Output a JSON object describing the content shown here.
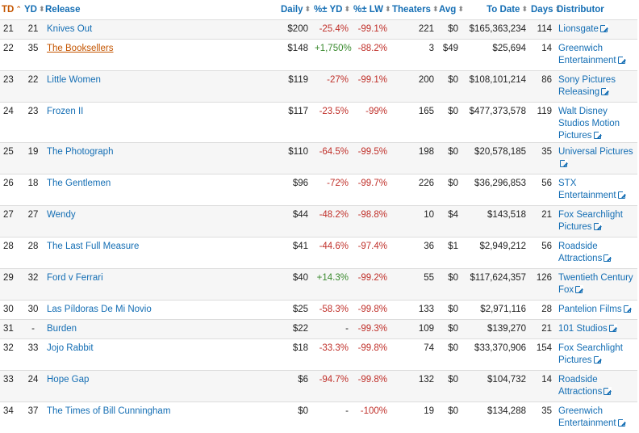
{
  "headers": {
    "td": "TD",
    "yd": "YD",
    "release": "Release",
    "daily": "Daily",
    "pct_yd": "%± YD",
    "pct_lw": "%± LW",
    "theaters": "Theaters",
    "avg": "Avg",
    "to_date": "To Date",
    "days": "Days",
    "distributor": "Distributor"
  },
  "rows": [
    {
      "td": "21",
      "yd": "21",
      "release": "Knives Out",
      "daily": "$200",
      "pct_yd": "-25.4%",
      "pct_lw": "-99.1%",
      "theaters": "221",
      "avg": "$0",
      "to_date": "$165,363,234",
      "days": "114",
      "distributor": "Lionsgate"
    },
    {
      "td": "22",
      "yd": "35",
      "release": "The Booksellers",
      "daily": "$148",
      "pct_yd": "+1,750%",
      "pct_lw": "-88.2%",
      "theaters": "3",
      "avg": "$49",
      "to_date": "$25,694",
      "days": "14",
      "distributor": "Greenwich Entertainment"
    },
    {
      "td": "23",
      "yd": "22",
      "release": "Little Women",
      "daily": "$119",
      "pct_yd": "-27%",
      "pct_lw": "-99.1%",
      "theaters": "200",
      "avg": "$0",
      "to_date": "$108,101,214",
      "days": "86",
      "distributor": "Sony Pictures Releasing"
    },
    {
      "td": "24",
      "yd": "23",
      "release": "Frozen II",
      "daily": "$117",
      "pct_yd": "-23.5%",
      "pct_lw": "-99%",
      "theaters": "165",
      "avg": "$0",
      "to_date": "$477,373,578",
      "days": "119",
      "distributor": "Walt Disney Studios Motion Pictures"
    },
    {
      "td": "25",
      "yd": "19",
      "release": "The Photograph",
      "daily": "$110",
      "pct_yd": "-64.5%",
      "pct_lw": "-99.5%",
      "theaters": "198",
      "avg": "$0",
      "to_date": "$20,578,185",
      "days": "35",
      "distributor": "Universal Pictures"
    },
    {
      "td": "26",
      "yd": "18",
      "release": "The Gentlemen",
      "daily": "$96",
      "pct_yd": "-72%",
      "pct_lw": "-99.7%",
      "theaters": "226",
      "avg": "$0",
      "to_date": "$36,296,853",
      "days": "56",
      "distributor": "STX Entertainment"
    },
    {
      "td": "27",
      "yd": "27",
      "release": "Wendy",
      "daily": "$44",
      "pct_yd": "-48.2%",
      "pct_lw": "-98.8%",
      "theaters": "10",
      "avg": "$4",
      "to_date": "$143,518",
      "days": "21",
      "distributor": "Fox Searchlight Pictures"
    },
    {
      "td": "28",
      "yd": "28",
      "release": "The Last Full Measure",
      "daily": "$41",
      "pct_yd": "-44.6%",
      "pct_lw": "-97.4%",
      "theaters": "36",
      "avg": "$1",
      "to_date": "$2,949,212",
      "days": "56",
      "distributor": "Roadside Attractions"
    },
    {
      "td": "29",
      "yd": "32",
      "release": "Ford v Ferrari",
      "daily": "$40",
      "pct_yd": "+14.3%",
      "pct_lw": "-99.2%",
      "theaters": "55",
      "avg": "$0",
      "to_date": "$117,624,357",
      "days": "126",
      "distributor": "Twentieth Century Fox"
    },
    {
      "td": "30",
      "yd": "30",
      "release": "Las Píldoras De Mi Novio",
      "daily": "$25",
      "pct_yd": "-58.3%",
      "pct_lw": "-99.8%",
      "theaters": "133",
      "avg": "$0",
      "to_date": "$2,971,116",
      "days": "28",
      "distributor": "Pantelion Films"
    },
    {
      "td": "31",
      "yd": "-",
      "release": "Burden",
      "daily": "$22",
      "pct_yd": "-",
      "pct_lw": "-99.3%",
      "theaters": "109",
      "avg": "$0",
      "to_date": "$139,270",
      "days": "21",
      "distributor": "101 Studios"
    },
    {
      "td": "32",
      "yd": "33",
      "release": "Jojo Rabbit",
      "daily": "$18",
      "pct_yd": "-33.3%",
      "pct_lw": "-99.8%",
      "theaters": "74",
      "avg": "$0",
      "to_date": "$33,370,906",
      "days": "154",
      "distributor": "Fox Searchlight Pictures"
    },
    {
      "td": "33",
      "yd": "24",
      "release": "Hope Gap",
      "daily": "$6",
      "pct_yd": "-94.7%",
      "pct_lw": "-99.8%",
      "theaters": "132",
      "avg": "$0",
      "to_date": "$104,732",
      "days": "14",
      "distributor": "Roadside Attractions"
    },
    {
      "td": "34",
      "yd": "37",
      "release": "The Times of Bill Cunningham",
      "daily": "$0",
      "pct_yd": "-",
      "pct_lw": "-100%",
      "theaters": "19",
      "avg": "$0",
      "to_date": "$134,288",
      "days": "35",
      "distributor": "Greenwich Entertainment"
    }
  ]
}
